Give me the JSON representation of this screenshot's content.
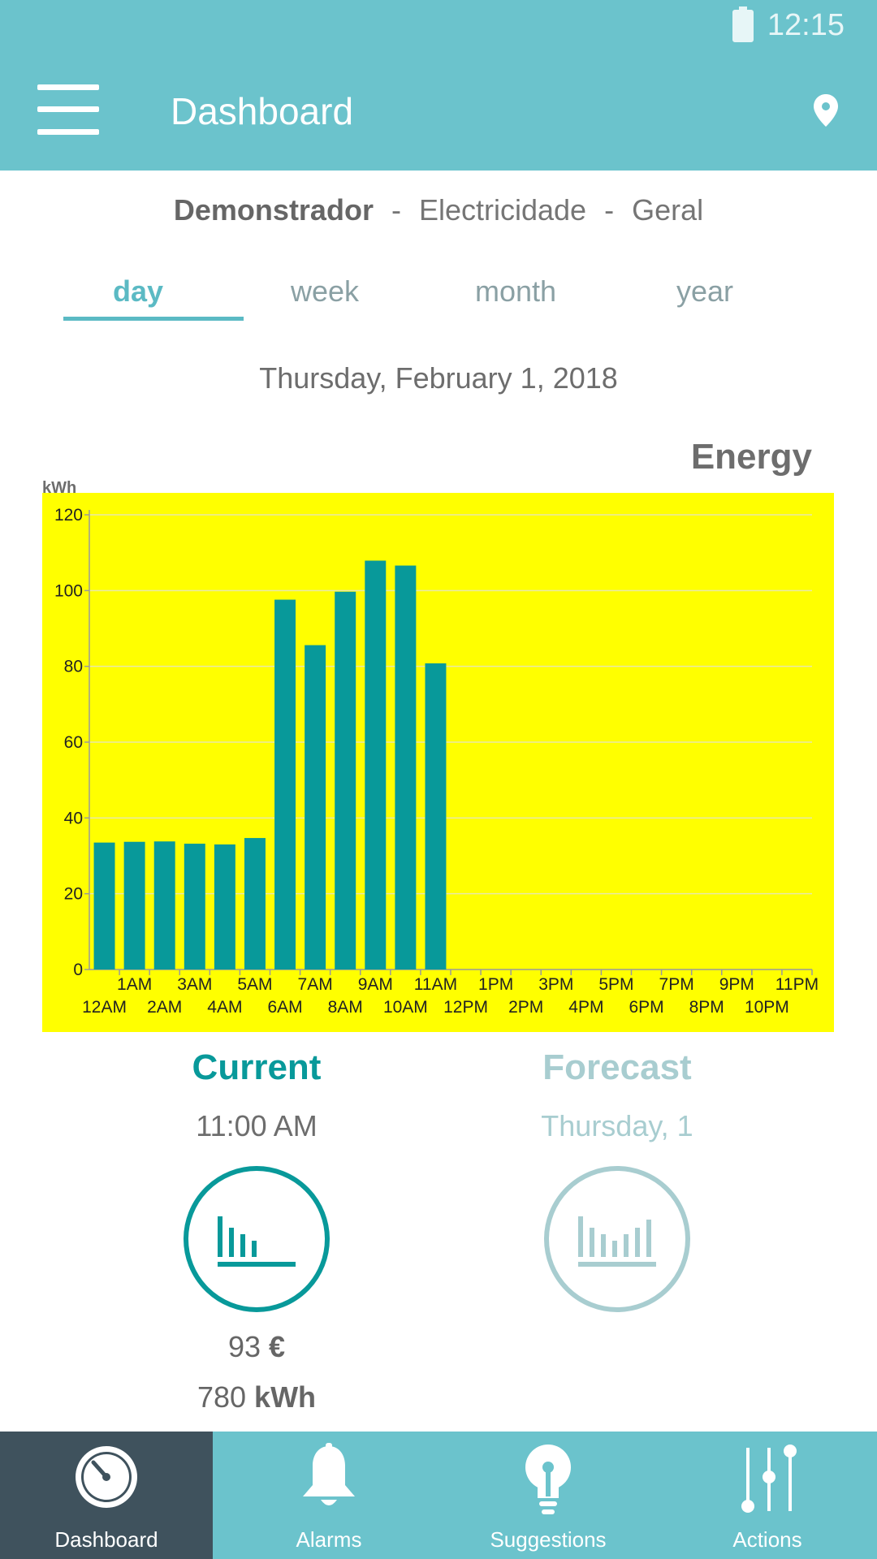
{
  "status_bar": {
    "time": "12:15"
  },
  "app_bar": {
    "title": "Dashboard"
  },
  "breadcrumb": {
    "site": "Demonstrador",
    "separator": "-",
    "type": "Electricidade",
    "meter": "Geral"
  },
  "tabs": [
    {
      "label": "day",
      "active": true
    },
    {
      "label": "week",
      "active": false
    },
    {
      "label": "month",
      "active": false
    },
    {
      "label": "year",
      "active": false
    }
  ],
  "date": "Thursday, February 1, 2018",
  "colors": {
    "accent": "#6bc3cc",
    "bar": "#08999a",
    "plot_bg": "#ffff00",
    "nav_active": "#3f525d",
    "forecast": "#a8cdd0"
  },
  "chart_data": {
    "type": "bar",
    "title": "Energy",
    "ylabel": "kWh",
    "ylim": [
      0,
      120
    ],
    "yticks": [
      0,
      20,
      40,
      60,
      80,
      100,
      120
    ],
    "grid": true,
    "categories": [
      "12AM",
      "1AM",
      "2AM",
      "3AM",
      "4AM",
      "5AM",
      "6AM",
      "7AM",
      "8AM",
      "9AM",
      "10AM",
      "11AM",
      "12PM",
      "1PM",
      "2PM",
      "3PM",
      "4PM",
      "5PM",
      "6PM",
      "7PM",
      "8PM",
      "9PM",
      "10PM",
      "11PM"
    ],
    "values": [
      33.5,
      33.7,
      33.8,
      33.2,
      33.0,
      34.7,
      97.6,
      85.6,
      99.7,
      107.9,
      106.6,
      80.8,
      null,
      null,
      null,
      null,
      null,
      null,
      null,
      null,
      null,
      null,
      null,
      null
    ]
  },
  "current": {
    "title": "Current",
    "time": "11:00 AM",
    "cost_value": "93",
    "cost_unit": "€",
    "energy_value": "780",
    "energy_unit": "kWh",
    "icon": "bar-chart-icon"
  },
  "forecast": {
    "title": "Forecast",
    "date": "Thursday, 1",
    "icon": "bar-chart-icon"
  },
  "bottom_nav": [
    {
      "label": "Dashboard",
      "icon": "gauge-icon",
      "active": true
    },
    {
      "label": "Alarms",
      "icon": "bell-icon",
      "active": false
    },
    {
      "label": "Suggestions",
      "icon": "lightbulb-icon",
      "active": false
    },
    {
      "label": "Actions",
      "icon": "sliders-icon",
      "active": false
    }
  ]
}
